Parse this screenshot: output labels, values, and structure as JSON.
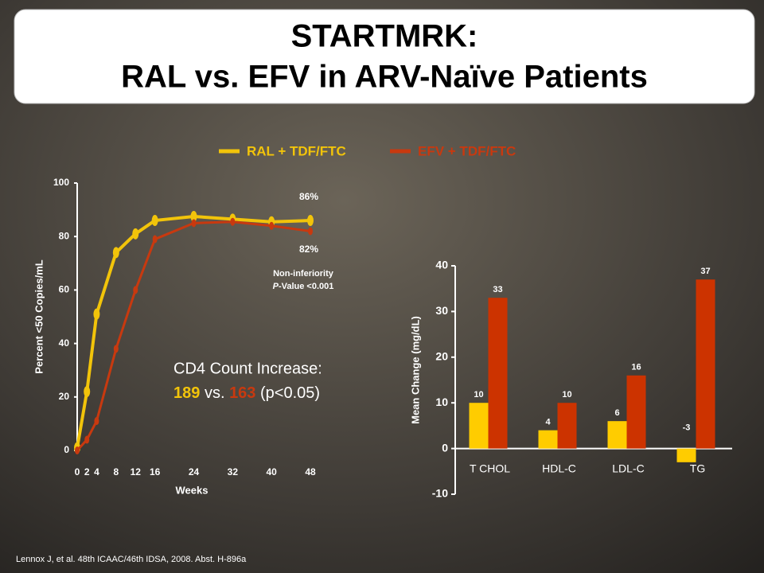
{
  "slide": {
    "title_line1": "STARTMRK:",
    "title_line2": "RAL vs. EFV in ARV-Naïve Patients",
    "citation": "Lennox J, et al. 48th ICAAC/46th IDSA, 2008. Abst. H-896a",
    "cd4": {
      "label": "CD4 Count Increase:",
      "ral": 189,
      "vs": "vs.",
      "efv": 163,
      "p": "(p<0.05)"
    }
  },
  "chart_data": [
    {
      "type": "line",
      "x_label": "Weeks",
      "y_label": "Percent <50 Copies/mL",
      "x": [
        0,
        2,
        4,
        8,
        12,
        16,
        24,
        32,
        40,
        48
      ],
      "xlim": [
        0,
        48
      ],
      "xticks": [
        0,
        2,
        4,
        8,
        12,
        16,
        24,
        32,
        40,
        48
      ],
      "ylim": [
        0,
        100
      ],
      "yticks": [
        0,
        20,
        40,
        60,
        80,
        100
      ],
      "series": [
        {
          "name": "RAL + TDF/FTC",
          "color": "#f2c40a",
          "values": [
            1,
            22,
            51,
            74,
            81,
            86,
            87.5,
            86.5,
            85.5,
            86
          ]
        },
        {
          "name": "EFV + TDF/FTC",
          "color": "#c8390f",
          "values": [
            0,
            4,
            11,
            38,
            60,
            79,
            85,
            85.5,
            84,
            82
          ]
        }
      ],
      "annotations": [
        "86%",
        "82%",
        "Non-inferiority"
      ],
      "p_value": {
        "italic": "P",
        "text": "-Value <0.001"
      }
    },
    {
      "type": "bar",
      "y_label": "Mean Change (mg/dL)",
      "categories": [
        "T CHOL",
        "HDL-C",
        "LDL-C",
        "TG"
      ],
      "ylim": [
        -10,
        40
      ],
      "yticks": [
        -10,
        0,
        10,
        20,
        30,
        40
      ],
      "series": [
        {
          "name": "RAL",
          "color": "#ffcc00",
          "values": [
            10,
            4,
            6,
            -3
          ]
        },
        {
          "name": "EFV",
          "color": "#cc3300",
          "values": [
            33,
            10,
            16,
            37
          ]
        }
      ]
    }
  ]
}
